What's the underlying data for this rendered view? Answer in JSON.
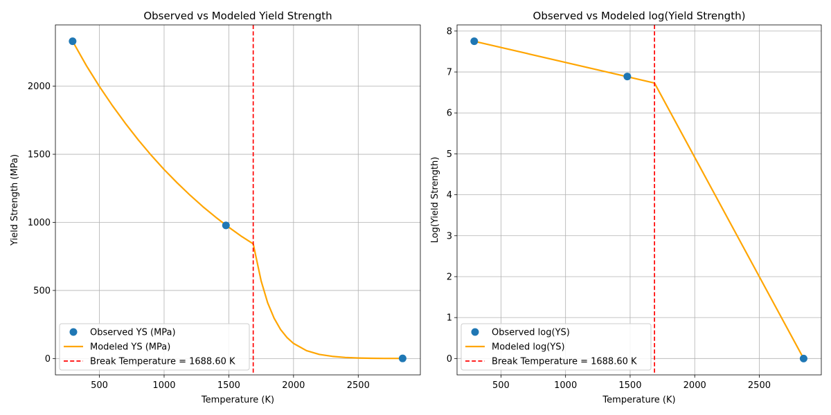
{
  "chart_data": [
    {
      "type": "line",
      "title": "Observed vs Modeled Yield Strength",
      "xlabel": "Temperature (K)",
      "ylabel": "Yield Strength (MPa)",
      "xlim": [
        160,
        2980
      ],
      "ylim": [
        -120,
        2450
      ],
      "xticks": [
        500,
        1000,
        1500,
        2000,
        2500
      ],
      "yticks": [
        0,
        500,
        1000,
        1500,
        2000
      ],
      "grid": true,
      "legend_position": "lower-left",
      "break_temperature": 1688.6,
      "observed": {
        "name": "Observed YS (MPa)",
        "color": "#1f77b4",
        "x": [
          293,
          1478,
          2843
        ],
        "y": [
          2330,
          978,
          1
        ]
      },
      "modeled": {
        "name": "Modeled YS (MPa)",
        "color": "#ffa500",
        "x": [
          293,
          400,
          500,
          600,
          700,
          800,
          900,
          1000,
          1100,
          1200,
          1300,
          1400,
          1500,
          1600,
          1688.6,
          1750,
          1800,
          1850,
          1900,
          1950,
          2000,
          2100,
          2200,
          2300,
          2400,
          2500,
          2600,
          2700,
          2843
        ],
        "y": [
          2330,
          2150,
          1998,
          1858,
          1728,
          1606,
          1493,
          1388,
          1291,
          1200,
          1115,
          1037,
          964,
          896,
          842,
          569,
          410,
          296,
          213,
          154,
          111,
          58,
          30,
          16,
          8,
          4,
          2,
          1,
          1
        ]
      },
      "break_line": {
        "name": "Break Temperature = 1688.60 K",
        "color": "#ff0000"
      }
    },
    {
      "type": "line",
      "title": "Observed vs Modeled log(Yield Strength)",
      "xlabel": "Temperature (K)",
      "ylabel": "Log(Yield Strength)",
      "xlim": [
        160,
        2980
      ],
      "ylim": [
        -0.4,
        8.15
      ],
      "xticks": [
        500,
        1000,
        1500,
        2000,
        2500
      ],
      "yticks": [
        0,
        1,
        2,
        3,
        4,
        5,
        6,
        7,
        8
      ],
      "grid": true,
      "legend_position": "lower-left",
      "break_temperature": 1688.6,
      "observed": {
        "name": "Observed log(YS)",
        "color": "#1f77b4",
        "x": [
          293,
          1478,
          2843
        ],
        "y": [
          7.75,
          6.89,
          0
        ]
      },
      "modeled": {
        "name": "Modeled log(YS)",
        "color": "#ffa500",
        "x": [
          293,
          1688.6,
          2843
        ],
        "y": [
          7.75,
          6.73,
          0
        ]
      },
      "break_line": {
        "name": "Break Temperature = 1688.60 K",
        "color": "#ff0000"
      }
    }
  ]
}
